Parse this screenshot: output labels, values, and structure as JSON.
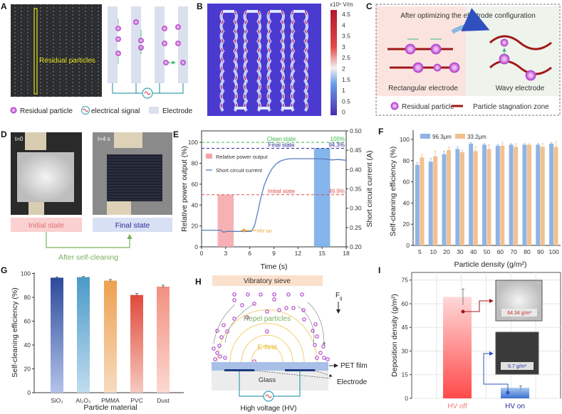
{
  "panels": {
    "A": "A",
    "B": "B",
    "C": "C",
    "D": "D",
    "E": "E",
    "F": "F",
    "G": "G",
    "H": "H",
    "I": "I"
  },
  "panel_a": {
    "photo_label": "Residual particles",
    "legend": {
      "particle": "Residual particle",
      "signal": "electrical signal",
      "electrode": "Electrode"
    }
  },
  "panel_b": {
    "colorbar_unit": "x10⁶ V/m",
    "colorbar_ticks": [
      "4.5",
      "4",
      "3.5",
      "3",
      "2.5",
      "2",
      "1.5",
      "1",
      "0.5",
      "0"
    ],
    "colorbar_range": [
      0,
      4.5
    ]
  },
  "panel_c": {
    "title": "After optimizing the electrode configuration",
    "left_label": "Rectangular electrode",
    "right_label": "Wavy electrode",
    "legend": {
      "particle": "Residual particle",
      "zone": "Particle stagnation zone"
    }
  },
  "panel_d": {
    "left_time": "t=0",
    "right_time": "t=4 s",
    "initial_label": "Initial state",
    "final_label": "Final state",
    "arrow_label": "After self-cleaning"
  },
  "panel_h": {
    "sieve": "Vibratory sieve",
    "force": "F",
    "force_sub": "g",
    "repel": "Repel particles",
    "efield": "E-field",
    "pet": "PET film",
    "glass": "Glass",
    "electrode": "Electrode",
    "hv": "High voltage (HV)"
  },
  "colors": {
    "blue": "#8fb4e3",
    "orange": "#f2c08f",
    "red_bar": "#f5a3a8",
    "blue_bar": "#6fa8e8",
    "particle": "#c050d0",
    "clean": "#3cb84a",
    "final": "#2a2a9a",
    "initial": "#e05050",
    "hv_on": "#f0a030"
  },
  "chart_data": [
    {
      "panel": "E",
      "type": "bar+line",
      "xlabel": "Time (s)",
      "ylabel": "Relative power output (%)",
      "ylabel_right": "Short circuit current (A)",
      "xlim": [
        0,
        18
      ],
      "ylim": [
        0,
        111
      ],
      "ylim_right": [
        0.2,
        0.5
      ],
      "xticks": [
        "0",
        "3",
        "6",
        "9",
        "12",
        "15",
        "18"
      ],
      "yticks": [
        "0",
        "20",
        "40",
        "60",
        "80",
        "100"
      ],
      "yticks_right": [
        "0.20",
        "0.25",
        "0.30",
        "0.35",
        "0.40",
        "0.45",
        "0.50"
      ],
      "legend": [
        "Relative power output",
        "Short circuit current"
      ],
      "bars": [
        {
          "x_start": 2,
          "x_end": 4,
          "value": 49.9,
          "color": "#f5a3a8"
        },
        {
          "x_start": 14,
          "x_end": 16,
          "value": 94.3,
          "color": "#6fa8e8"
        }
      ],
      "line": {
        "x": [
          0,
          2.4,
          2.7,
          3.2,
          6.2,
          6.6,
          7.0,
          7.4,
          7.8,
          8.3,
          8.8,
          9.3,
          9.8,
          10.4,
          11,
          13,
          14.5,
          15.5,
          16.2,
          17,
          18
        ],
        "y": [
          0.243,
          0.243,
          0.238,
          0.24,
          0.24,
          0.255,
          0.29,
          0.33,
          0.36,
          0.385,
          0.403,
          0.415,
          0.422,
          0.426,
          0.428,
          0.428,
          0.428,
          0.427,
          0.425,
          0.426,
          0.424
        ]
      },
      "reference_lines": [
        {
          "label": "Clean state",
          "value_label": "100%",
          "value": 100,
          "color": "#3cb84a"
        },
        {
          "label": "Final state",
          "value_label": "94.3%",
          "value": 94.3,
          "color": "#2a2a9a"
        },
        {
          "label": "Initial state",
          "value_label": "49.9%",
          "value": 49.9,
          "color": "#e05050"
        }
      ],
      "annotation": {
        "label": "HV on",
        "x": 6.5
      }
    },
    {
      "panel": "F",
      "type": "bar",
      "xlabel": "Particle density (g/m²)",
      "ylabel": "Self-cleaning efficiency (%)",
      "ylim": [
        0,
        105
      ],
      "yticks": [
        "0",
        "20",
        "40",
        "60",
        "80",
        "100"
      ],
      "legend_position": "top-left",
      "categories": [
        "5",
        "10",
        "20",
        "30",
        "40",
        "50",
        "60",
        "70",
        "80",
        "90",
        "100"
      ],
      "series": [
        {
          "name": "96.3μm",
          "color": "#8fb4e3",
          "values": [
            76,
            79,
            86,
            91,
            96,
            95,
            94,
            95,
            95,
            95,
            96
          ],
          "errors": [
            2,
            3,
            3,
            2,
            1,
            1,
            1,
            1,
            1,
            1,
            1
          ]
        },
        {
          "name": "33.2μm",
          "color": "#f2c08f",
          "values": [
            83,
            84,
            90,
            88,
            89,
            91,
            94,
            93,
            95,
            93,
            93
          ],
          "errors": [
            3,
            5,
            3,
            2,
            4,
            4,
            3,
            3,
            1,
            3,
            5
          ]
        }
      ]
    },
    {
      "panel": "G",
      "type": "bar",
      "xlabel": "Particle material",
      "ylabel": "Self-cleaning efficiency (%)",
      "ylim": [
        0,
        100
      ],
      "yticks": [
        "0",
        "20",
        "40",
        "60",
        "80",
        "100"
      ],
      "categories": [
        "SiO₂",
        "Al₂O₃",
        "PMMA",
        "PVC",
        "Dust"
      ],
      "values": [
        96.5,
        97,
        94,
        82,
        89
      ],
      "errors": [
        0.5,
        0.5,
        1,
        1.2,
        1.2
      ],
      "colors": [
        [
          "#2c4a9a",
          "#b3c3ea"
        ],
        [
          "#4a9ac8",
          "#c0dcef"
        ],
        [
          "#eea050",
          "#f6dcc0"
        ],
        [
          "#e04a3a",
          "#f6c8c0"
        ],
        [
          "#f29080",
          "#fbd8d0"
        ]
      ]
    },
    {
      "panel": "I",
      "type": "bar",
      "ylabel": "Deposition density (g/m²)",
      "ylim": [
        0,
        75
      ],
      "yticks": [
        "0",
        "15",
        "30",
        "45",
        "60",
        "75"
      ],
      "categories": [
        "HV off",
        "HV on"
      ],
      "values": [
        64.34,
        6.7
      ],
      "errors": [
        5,
        1.2
      ],
      "value_labels": [
        "64.34 g/m²",
        "6.7 g/m²"
      ],
      "colors": [
        [
          "#ff4a4a",
          "#ffd8d8"
        ],
        [
          "#3a70d0",
          "#a8c8f0"
        ]
      ]
    }
  ]
}
